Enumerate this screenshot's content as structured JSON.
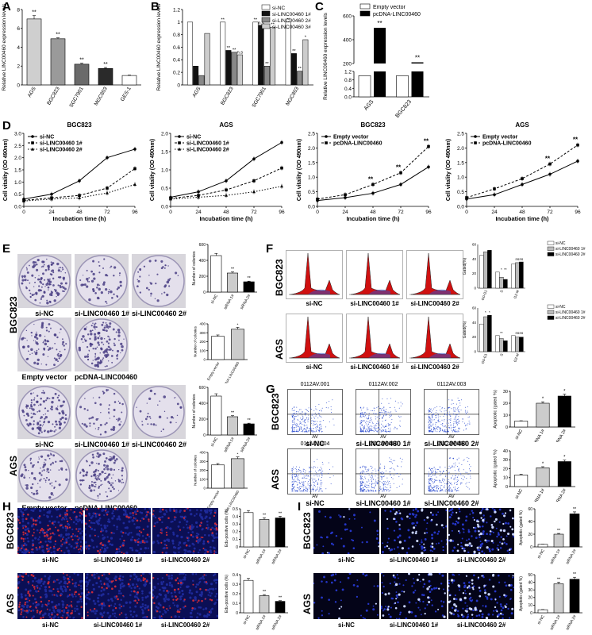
{
  "panels": {
    "A": "A",
    "B": "B",
    "C": "C",
    "D": "D",
    "E": "E",
    "F": "F",
    "G": "G",
    "H": "H",
    "I": "I"
  },
  "chart_data": [
    {
      "id": "A",
      "type": "bar",
      "categories": [
        "AGS",
        "BGC823",
        "SGC7901",
        "MGC803",
        "GES-1"
      ],
      "values": [
        7.0,
        4.9,
        2.2,
        1.75,
        1.0
      ],
      "errors": [
        0.35,
        0.1,
        0.1,
        0.1,
        0.05
      ],
      "annotations": [
        "**",
        "**",
        "**",
        "**",
        ""
      ],
      "ylabel": "Relative LINC00460 expression levels",
      "ylim": [
        0,
        8
      ],
      "yticks": [
        0,
        2,
        4,
        6,
        8
      ],
      "colors": [
        "#cfcfcf",
        "#9a9a9a",
        "#6a6a6a",
        "#2a2a2a",
        "#ffffff"
      ]
    },
    {
      "id": "B",
      "type": "bar",
      "categories": [
        "AGS",
        "BGC823",
        "SGC7901",
        "MGC803"
      ],
      "series": [
        {
          "name": "si-NC",
          "values": [
            1.0,
            1.0,
            1.0,
            1.0
          ],
          "color": "#ffffff"
        },
        {
          "name": "si-LINC00460 1#",
          "values": [
            0.3,
            0.55,
            0.95,
            0.5
          ],
          "color": "#111111"
        },
        {
          "name": "si-LINC00460 2#",
          "values": [
            0.15,
            0.52,
            0.3,
            0.22
          ],
          "color": "#888888"
        },
        {
          "name": "si-LINC00460 3#",
          "values": [
            0.82,
            0.48,
            0.92,
            0.72
          ],
          "color": "#cccccc"
        }
      ],
      "annotations": [
        [
          "",
          "**",
          "**",
          "**"
        ],
        [
          "",
          "**",
          "n.s",
          "**"
        ],
        [
          "",
          "**",
          "**",
          "**"
        ],
        [
          "",
          "n.s",
          "**",
          "*"
        ]
      ],
      "ylabel": "Relative LINC00460 expression levels",
      "ylim": [
        0,
        1.2
      ],
      "yticks": [
        0.0,
        0.2,
        0.4,
        0.6,
        0.8,
        1.0,
        1.2
      ]
    },
    {
      "id": "C",
      "type": "bar",
      "categories": [
        "AGS",
        "BGC823"
      ],
      "series": [
        {
          "name": "Empty vector",
          "values": [
            1.0,
            1.0
          ],
          "color": "#ffffff"
        },
        {
          "name": "pcDNA-LINC00460",
          "values": [
            500,
            210
          ],
          "color": "#000000"
        }
      ],
      "annotations": [
        "**",
        "**"
      ],
      "ylabel": "Relative LINC00460 expression levels",
      "yticks": [
        "0.0",
        "0.4",
        "0.8",
        "1.2",
        "200",
        "400",
        "600"
      ]
    },
    {
      "id": "D1",
      "type": "line",
      "title": "BGC823",
      "x": [
        0,
        24,
        48,
        72,
        96
      ],
      "series": [
        {
          "name": "si-NC",
          "values": [
            0.3,
            0.5,
            1.05,
            2.0,
            2.35
          ]
        },
        {
          "name": "si-LINC00460 1#",
          "values": [
            0.25,
            0.35,
            0.45,
            0.75,
            1.55
          ]
        },
        {
          "name": "si-LINC00460 2#",
          "values": [
            0.22,
            0.3,
            0.35,
            0.55,
            0.9
          ]
        }
      ],
      "xlabel": "Incubation time (h)",
      "ylabel": "Cell vitality (OD 490nm)",
      "ylim": [
        0,
        3.0
      ],
      "yticks": [
        "0.0",
        "0.5",
        "1.0",
        "1.5",
        "2.0",
        "2.5",
        "3.0"
      ]
    },
    {
      "id": "D2",
      "type": "line",
      "title": "AGS",
      "x": [
        0,
        24,
        48,
        72,
        96
      ],
      "series": [
        {
          "name": "si-NC",
          "values": [
            0.25,
            0.4,
            0.7,
            1.3,
            1.75
          ]
        },
        {
          "name": "si-LINC00460 1#",
          "values": [
            0.22,
            0.3,
            0.45,
            0.7,
            1.05
          ]
        },
        {
          "name": "si-LINC00460 2#",
          "values": [
            0.2,
            0.25,
            0.3,
            0.4,
            0.55
          ]
        }
      ],
      "xlabel": "Incubation time (h)",
      "ylabel": "Cell vitality (OD 490nm)",
      "ylim": [
        0,
        2.0
      ],
      "yticks": [
        "0.0",
        "0.5",
        "1.0",
        "1.5",
        "2.0"
      ]
    },
    {
      "id": "D3",
      "type": "line",
      "title": "BGC823",
      "x": [
        0,
        24,
        48,
        72,
        96
      ],
      "series": [
        {
          "name": "Empty vector",
          "values": [
            0.2,
            0.3,
            0.45,
            0.75,
            1.35
          ]
        },
        {
          "name": "pcDNA-LINC00460",
          "values": [
            0.25,
            0.4,
            0.75,
            1.15,
            2.05
          ]
        }
      ],
      "annotations": [
        "**",
        "**",
        "**"
      ],
      "xlabel": "Incubation time (h)",
      "ylabel": "Cell vitality (OD 490nm)",
      "ylim": [
        0,
        2.5
      ],
      "yticks": [
        "0.0",
        "0.5",
        "1.0",
        "1.5",
        "2.0",
        "2.5"
      ]
    },
    {
      "id": "D4",
      "type": "line",
      "title": "AGS",
      "x": [
        0,
        24,
        48,
        72,
        96
      ],
      "series": [
        {
          "name": "Empty vector",
          "values": [
            0.25,
            0.4,
            0.75,
            1.1,
            1.55
          ]
        },
        {
          "name": "pcDNA-LINC00460",
          "values": [
            0.3,
            0.6,
            0.95,
            1.45,
            2.1
          ]
        }
      ],
      "annotations": [
        "**",
        "**"
      ],
      "xlabel": "Incubation time (h)",
      "ylabel": "Cell vitality (OD 490nm)",
      "ylim": [
        0,
        2.5
      ],
      "yticks": [
        "0.0",
        "0.5",
        "1.0",
        "1.5",
        "2.0",
        "2.5"
      ]
    },
    {
      "id": "E1",
      "type": "bar",
      "categories": [
        "si-NC",
        "siRNA 1#",
        "siRNA 2#"
      ],
      "values": [
        460,
        240,
        130
      ],
      "annotations": [
        "",
        "**",
        "**"
      ],
      "ylabel": "Number of colonies",
      "ylim": [
        0,
        600
      ],
      "yticks": [
        0,
        200,
        400,
        600
      ],
      "colors": [
        "#ffffff",
        "#cccccc",
        "#000000"
      ]
    },
    {
      "id": "E2",
      "type": "bar",
      "categories": [
        "Empty vector",
        "pcDNA-LINC00460"
      ],
      "values": [
        260,
        340
      ],
      "annotations": [
        "",
        "*"
      ],
      "ylabel": "Number of colonies",
      "ylim": [
        0,
        400
      ],
      "yticks": [
        0,
        100,
        200,
        300,
        400
      ],
      "colors": [
        "#ffffff",
        "#cccccc"
      ]
    },
    {
      "id": "E3",
      "type": "bar",
      "categories": [
        "si-NC",
        "siRNA 1#",
        "siRNA 2#"
      ],
      "values": [
        490,
        230,
        140
      ],
      "annotations": [
        "",
        "**",
        "**"
      ],
      "ylabel": "Number of colonies",
      "ylim": [
        0,
        600
      ],
      "yticks": [
        0,
        200,
        400,
        600
      ],
      "colors": [
        "#ffffff",
        "#cccccc",
        "#000000"
      ]
    },
    {
      "id": "E4",
      "type": "bar",
      "categories": [
        "Empty vector",
        "pcDNA-LINC00460"
      ],
      "values": [
        260,
        330
      ],
      "annotations": [
        "",
        "*"
      ],
      "ylabel": "Number of colonies",
      "ylim": [
        0,
        400
      ],
      "yticks": [
        0,
        100,
        200,
        300,
        400
      ],
      "colors": [
        "#ffffff",
        "#cccccc"
      ]
    },
    {
      "id": "F1",
      "type": "bar",
      "categories": [
        "G0-G1",
        "S",
        "G2-M"
      ],
      "series": [
        {
          "name": "si-NC",
          "values": [
            45,
            22,
            33
          ]
        },
        {
          "name": "si-LINC00460 1#",
          "values": [
            50,
            15,
            35
          ]
        },
        {
          "name": "si-LINC00460 2#",
          "values": [
            52,
            12,
            36
          ]
        }
      ],
      "annotations": [
        [
          "",
          "*",
          "ns"
        ],
        [
          "",
          "**",
          "ns"
        ]
      ],
      "ylabel": "Gated(%)",
      "ylim": [
        0,
        60
      ],
      "yticks": [
        0,
        20,
        40,
        60
      ]
    },
    {
      "id": "F2",
      "type": "bar",
      "categories": [
        "G0-G1",
        "S",
        "G2-M"
      ],
      "series": [
        {
          "name": "si-NC",
          "values": [
            38,
            22,
            22
          ]
        },
        {
          "name": "si-LINC00460 1#",
          "values": [
            48,
            18,
            20
          ]
        },
        {
          "name": "si-LINC00460 2#",
          "values": [
            50,
            15,
            20
          ]
        }
      ],
      "annotations": [
        [
          "*",
          "**",
          "ns"
        ],
        [
          "*",
          "",
          "ns"
        ]
      ],
      "ylabel": "Gated(%)",
      "ylim": [
        0,
        60
      ],
      "yticks": [
        0,
        20,
        40,
        60
      ]
    },
    {
      "id": "G1",
      "type": "bar",
      "categories": [
        "si-NC",
        "siRNA 1#",
        "siRNA 2#"
      ],
      "values": [
        5,
        20,
        26
      ],
      "annotations": [
        "",
        "*",
        "*"
      ],
      "ylabel": "Apoptotic (gated %)",
      "ylim": [
        0,
        30
      ],
      "yticks": [
        0,
        10,
        20,
        30
      ],
      "colors": [
        "#ffffff",
        "#cccccc",
        "#000000"
      ]
    },
    {
      "id": "G2",
      "type": "bar",
      "categories": [
        "si-NC",
        "siRNA 1#",
        "siRNA 2#"
      ],
      "values": [
        13,
        21,
        28
      ],
      "annotations": [
        "",
        "*",
        "*"
      ],
      "ylabel": "Apoptotic (gated %)",
      "ylim": [
        0,
        40
      ],
      "yticks": [
        0,
        10,
        20,
        30,
        40
      ],
      "colors": [
        "#ffffff",
        "#cccccc",
        "#000000"
      ]
    },
    {
      "id": "H1",
      "type": "bar",
      "categories": [
        "si-NC",
        "siRNA 1#",
        "siRNA 2#"
      ],
      "values": [
        0.45,
        0.36,
        0.38
      ],
      "annotations": [
        "",
        "**",
        "**"
      ],
      "ylabel": "Edu-positive cells (%)",
      "ylim": [
        0,
        0.5
      ],
      "yticks": [
        0.0,
        0.1,
        0.2,
        0.3,
        0.4,
        0.5
      ],
      "colors": [
        "#ffffff",
        "#cccccc",
        "#000000"
      ]
    },
    {
      "id": "H2",
      "type": "bar",
      "categories": [
        "si-NC",
        "siRNA 1#",
        "siRNA 2#"
      ],
      "values": [
        0.34,
        0.18,
        0.12
      ],
      "annotations": [
        "",
        "**",
        "**"
      ],
      "ylabel": "Edu-positive cells (%)",
      "ylim": [
        0,
        0.4
      ],
      "yticks": [
        0.0,
        0.1,
        0.2,
        0.3,
        0.4
      ],
      "colors": [
        "#ffffff",
        "#cccccc",
        "#000000"
      ]
    },
    {
      "id": "I1",
      "type": "bar",
      "categories": [
        "si-NC",
        "siRNA 1#",
        "siRNA 2#"
      ],
      "values": [
        4,
        20,
        52
      ],
      "annotations": [
        "",
        "**",
        "**"
      ],
      "ylabel": "Apoptotic (gated %)",
      "ylim": [
        0,
        60
      ],
      "yticks": [
        0,
        20,
        40,
        60
      ],
      "colors": [
        "#ffffff",
        "#cccccc",
        "#000000"
      ]
    },
    {
      "id": "I2",
      "type": "bar",
      "categories": [
        "si-NC",
        "siRNA 1#",
        "siRNA 2#"
      ],
      "values": [
        4,
        38,
        44
      ],
      "annotations": [
        "",
        "**",
        "**"
      ],
      "ylabel": "Apoptotic (gated %)",
      "ylim": [
        0,
        50
      ],
      "yticks": [
        0,
        10,
        20,
        30,
        40,
        50
      ],
      "colors": [
        "#ffffff",
        "#cccccc",
        "#000000"
      ]
    }
  ],
  "images": {
    "E_rows": [
      {
        "label": "BGC823"
      },
      {
        "label": "AGS"
      }
    ],
    "E_cap_si": [
      "si-NC",
      "si-LINC00460 1#",
      "si-LINC00460 2#"
    ],
    "E_cap_vec": [
      "Empty vector",
      "pcDNA-LINC00460"
    ],
    "F_rows": [
      "BGC823",
      "AGS"
    ],
    "F_caps": [
      "si-NC",
      "si-LINC00460 1#",
      "si-LINC00460 2#"
    ],
    "G_rows": [
      "BGC823",
      "AGS"
    ],
    "G_files": [
      "0112AV.001",
      "0112AV.002",
      "0112AV.003",
      "0112AV.004",
      "0112AV.005",
      "0112AV.006"
    ],
    "G_caps": [
      "si-NC",
      "si-LINC00460 1#",
      "si-LINC00460 2#"
    ],
    "G_axis_x": "AV",
    "G_axis_y": "PI",
    "H_rows": [
      "BGC823",
      "AGS"
    ],
    "H_caps": [
      "si-NC",
      "si-LINC00460 1#",
      "si-LINC00460 2#"
    ],
    "I_rows": [
      "BGC823",
      "AGS"
    ],
    "I_caps": [
      "si-NC",
      "si-LINC00460 1#",
      "si-LINC00460 2#"
    ],
    "colors": {
      "crystal_violet": "#4a3e85",
      "edu_red": "#c82a3a",
      "dapi_blue": "#1e2a9a",
      "flow_red": "#d01010",
      "flow_blue": "#3050d0"
    }
  }
}
